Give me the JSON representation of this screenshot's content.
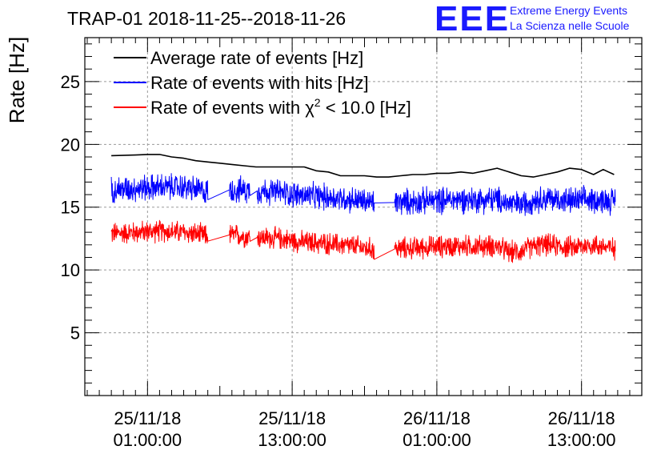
{
  "logo": {
    "mark": "EEE",
    "line1": "Extreme Energy Events",
    "line2": "La Scienza nelle Scuole"
  },
  "colors": {
    "average": "#000000",
    "hits": "#0000ff",
    "chi2": "#ff0000",
    "grid": "#9a9a9a",
    "logo": "#1a1aff"
  },
  "chart_data": {
    "type": "line",
    "title": "TRAP-01 2018-11-25--2018-11-26",
    "ylabel": "Rate [Hz]",
    "xlabel": "",
    "x_unit": "hours since 2018-11-25 00:00",
    "xlim": [
      -4.2,
      42.0
    ],
    "ylim": [
      0,
      28.5
    ],
    "y_ticks": [
      5,
      10,
      15,
      20,
      25
    ],
    "x_ticks": [
      {
        "x": 1,
        "date": "25/11/18",
        "time": "01:00:00"
      },
      {
        "x": 13,
        "date": "25/11/18",
        "time": "13:00:00"
      },
      {
        "x": 25,
        "date": "26/11/18",
        "time": "01:00:00"
      },
      {
        "x": 37,
        "date": "26/11/18",
        "time": "13:00:00"
      }
    ],
    "grid": true,
    "legend_position": "top-left",
    "legend": [
      {
        "key": "average",
        "label": "Average rate of events [Hz]"
      },
      {
        "key": "hits",
        "label": "Rate of events with hits [Hz]"
      },
      {
        "key": "chi2",
        "label_prefix": "Rate of events with ",
        "label_symbol": "χ",
        "label_sup": "2",
        "label_suffix": " < 10.0 [Hz]"
      }
    ],
    "series": [
      {
        "key": "average",
        "name": "Average rate of events [Hz]",
        "style": "smooth",
        "x": [
          -2.0,
          0,
          1,
          2,
          3,
          4,
          5,
          6,
          7,
          8,
          9,
          10,
          11,
          12,
          13,
          14,
          15,
          16,
          17,
          18,
          19,
          20,
          21,
          22,
          23,
          24,
          25,
          26,
          27,
          28,
          29,
          30,
          31,
          32,
          33,
          34,
          35,
          36,
          37,
          38,
          38.8,
          39.7
        ],
        "values": [
          19.1,
          19.15,
          19.2,
          19.2,
          19.0,
          18.9,
          18.7,
          18.6,
          18.5,
          18.4,
          18.3,
          18.2,
          18.2,
          18.2,
          18.2,
          18.2,
          17.9,
          17.8,
          17.5,
          17.5,
          17.5,
          17.4,
          17.4,
          17.5,
          17.6,
          17.6,
          17.7,
          17.7,
          17.8,
          17.7,
          17.9,
          18.1,
          17.8,
          17.5,
          17.4,
          17.6,
          17.8,
          18.1,
          18.0,
          17.6,
          18.0,
          17.6
        ]
      },
      {
        "key": "hits",
        "name": "Rate of events with hits [Hz]",
        "style": "noisy",
        "noise": 0.9,
        "segments": [
          [
            -2.0,
            6.0
          ],
          [
            7.8,
            9.5
          ],
          [
            10.1,
            19.8
          ],
          [
            21.5,
            39.8
          ]
        ],
        "x": [
          -2.0,
          0,
          2,
          4,
          6,
          8,
          10,
          12,
          14,
          16,
          18,
          20,
          22,
          24,
          26,
          28,
          30,
          31,
          32,
          33,
          34,
          36,
          38,
          39.8
        ],
        "values": [
          16.4,
          16.5,
          16.6,
          16.6,
          16.2,
          16.4,
          16.3,
          16.2,
          15.9,
          15.8,
          15.6,
          15.3,
          15.4,
          15.5,
          15.6,
          15.6,
          15.6,
          15.3,
          15.2,
          15.6,
          15.7,
          15.5,
          15.6,
          15.5
        ]
      },
      {
        "key": "chi2",
        "name": "Rate of events with χ2 < 10.0 [Hz]",
        "style": "noisy",
        "noise": 0.75,
        "segments": [
          [
            -2.0,
            6.0
          ],
          [
            7.8,
            9.5
          ],
          [
            10.1,
            19.8
          ],
          [
            21.5,
            39.8
          ]
        ],
        "x": [
          -2.0,
          0,
          2,
          4,
          6,
          8,
          10,
          12,
          14,
          16,
          18,
          20,
          22,
          24,
          26,
          28,
          30,
          31,
          32,
          33,
          34,
          36,
          38,
          39.8
        ],
        "values": [
          12.9,
          13.0,
          13.1,
          13.0,
          12.7,
          12.8,
          12.6,
          12.5,
          12.2,
          12.1,
          11.9,
          11.6,
          11.7,
          11.8,
          11.9,
          11.9,
          11.9,
          11.4,
          11.5,
          11.9,
          12.0,
          11.8,
          12.0,
          11.7
        ]
      }
    ]
  }
}
